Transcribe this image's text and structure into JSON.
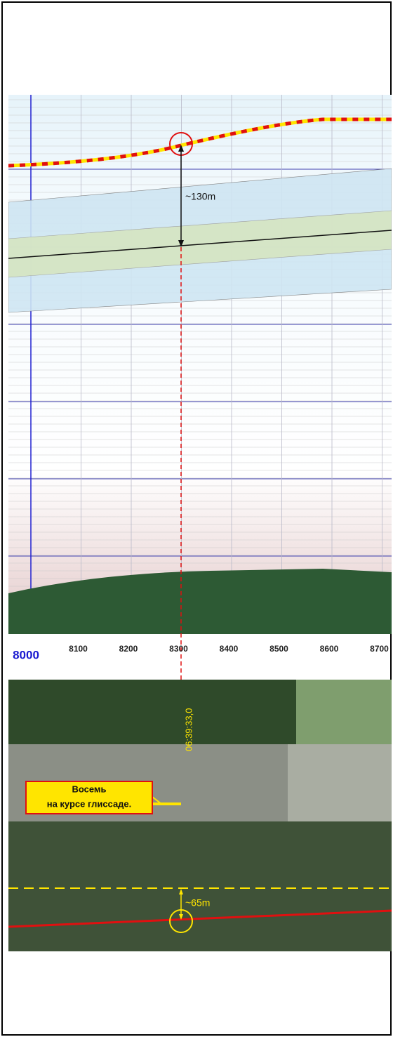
{
  "chart": {
    "x_tick_labels": [
      "8000",
      "8100",
      "8200",
      "8300",
      "8400",
      "8500",
      "8600",
      "8700"
    ],
    "height_annotation": "~130m"
  },
  "map": {
    "time_label": "06:39:33,0",
    "callout": [
      "Восемь",
      "на курсе глиссаде."
    ],
    "offset_annotation": "~65m"
  }
}
